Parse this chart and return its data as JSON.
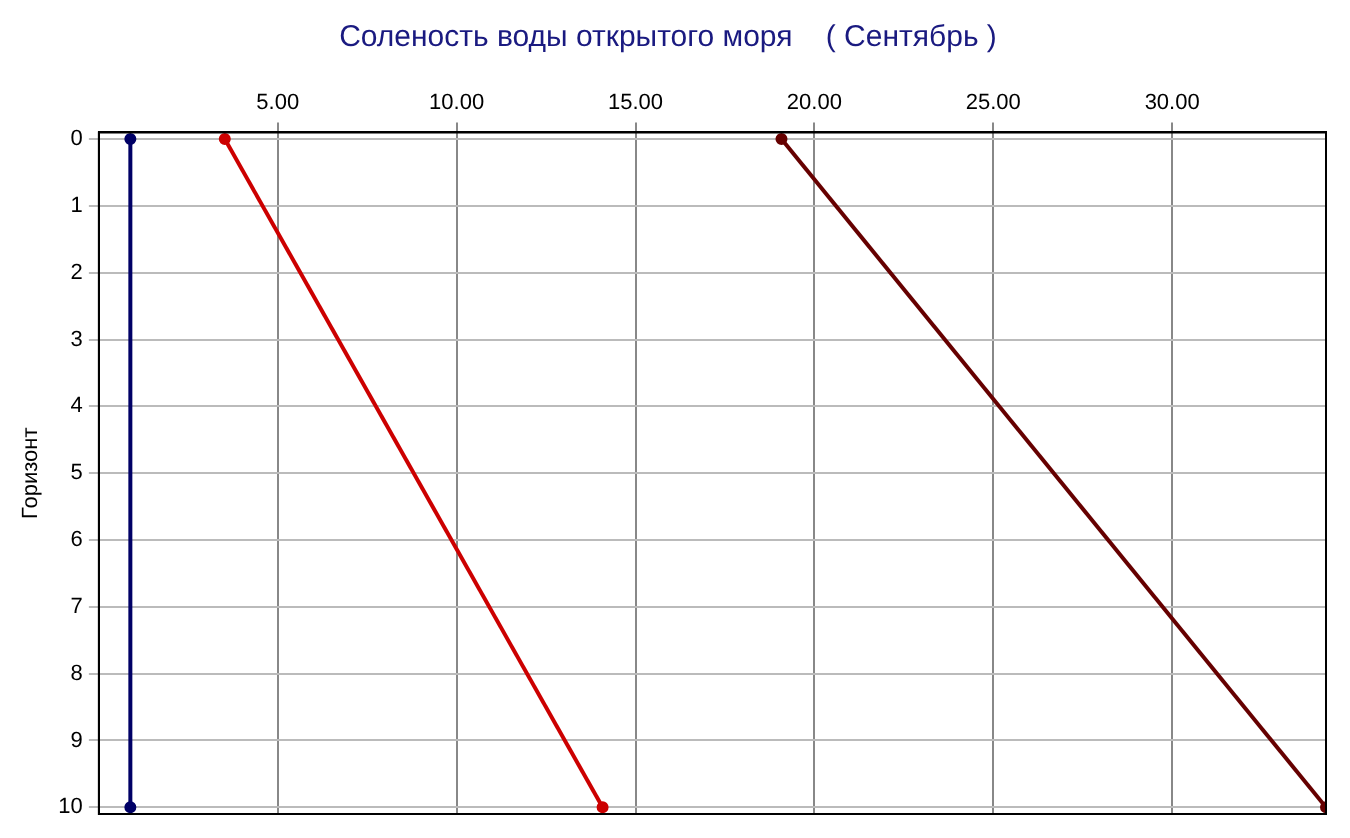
{
  "chart_data": {
    "type": "line",
    "title": "Соленость воды открытого моря    ( Сентябрь )",
    "ylabel": "Горизонт",
    "xlim": [
      0,
      34.3
    ],
    "xticks": [
      {
        "value": 5,
        "label": "5.00"
      },
      {
        "value": 10,
        "label": "10.00"
      },
      {
        "value": 15,
        "label": "15.00"
      },
      {
        "value": 20,
        "label": "20.00"
      },
      {
        "value": 25,
        "label": "25.00"
      },
      {
        "value": 30,
        "label": "30.00"
      }
    ],
    "ylim": [
      10.1,
      -0.1
    ],
    "yticks": [
      0,
      1,
      2,
      3,
      4,
      5,
      6,
      7,
      8,
      9,
      10
    ],
    "series": [
      {
        "color": "#000066",
        "x": [
          0.88,
          0.88
        ],
        "values": [
          0,
          10
        ]
      },
      {
        "color": "#cc0000",
        "x": [
          3.52,
          14.08
        ],
        "values": [
          0,
          10
        ]
      },
      {
        "color": "#660000",
        "x": [
          19.08,
          34.3
        ],
        "values": [
          0,
          10
        ]
      }
    ],
    "grid": true,
    "legend": false,
    "marker": "circle",
    "line_style": "solid"
  }
}
